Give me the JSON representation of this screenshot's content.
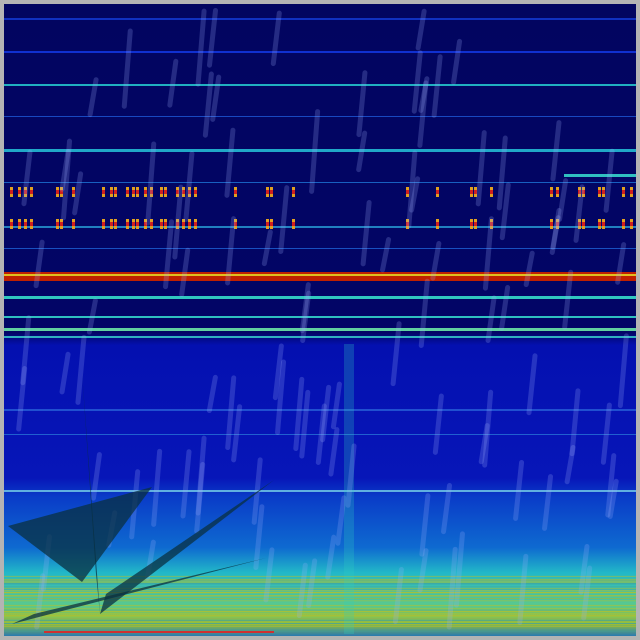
{
  "image": {
    "kind": "spectrogram with rain-streak overlay and dark triangular shapes",
    "colors": {
      "background_top": "#020560",
      "background_mid": "#0716b8",
      "band_cyan": "#20c8d0",
      "band_red": "#c02000",
      "band_yellow": "#e0c020",
      "low_band": "#58c890",
      "triangle": "#0a3040",
      "rain": "#a0b0ff"
    }
  }
}
